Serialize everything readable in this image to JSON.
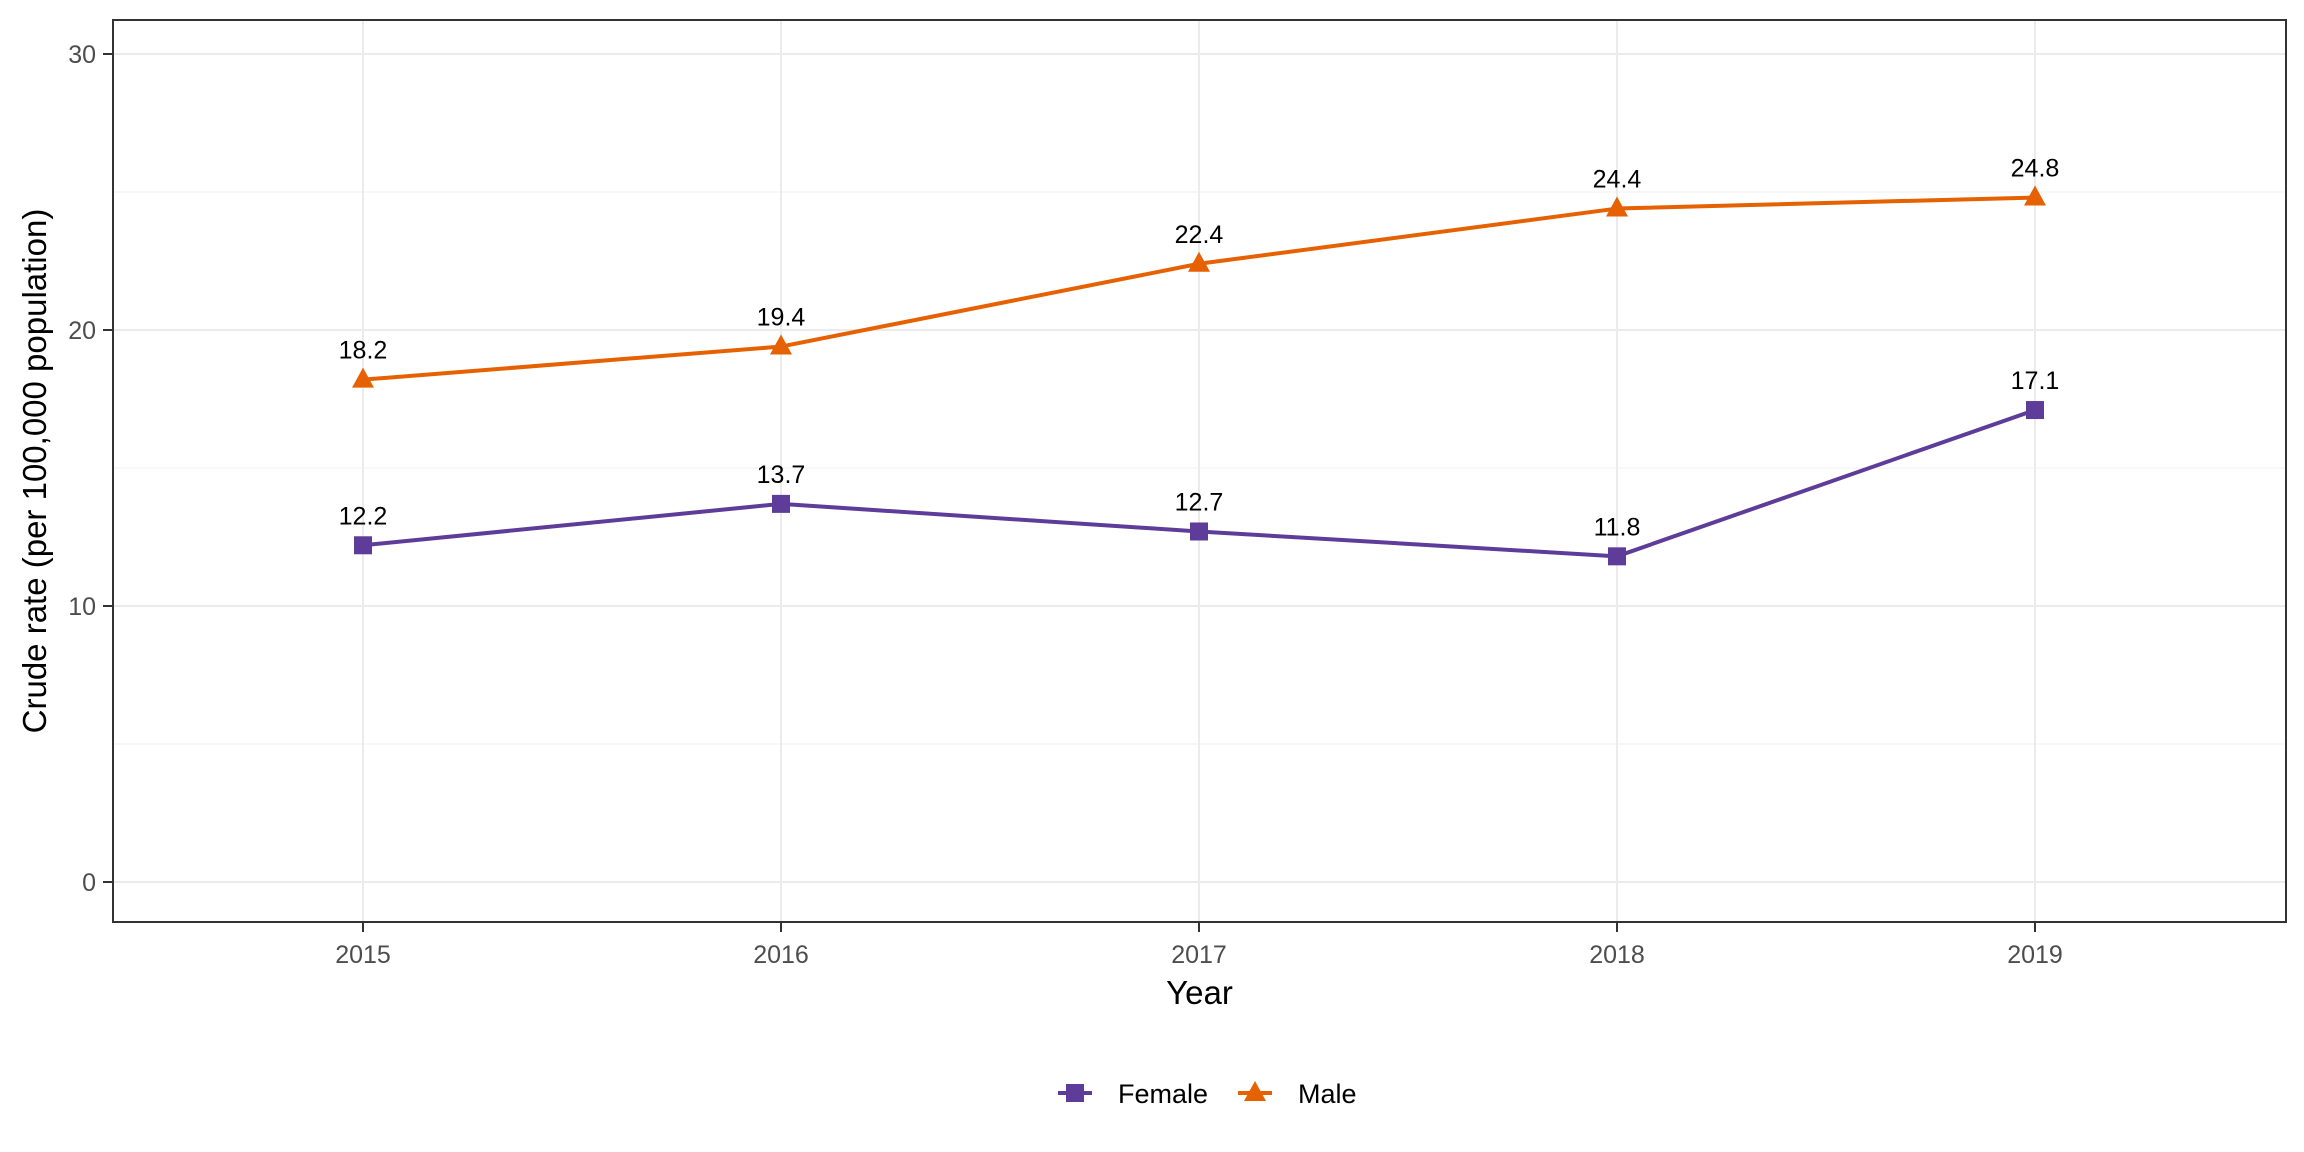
{
  "chart_data": {
    "type": "line",
    "title": "",
    "xlabel": "Year",
    "ylabel": "Crude rate (per 100,000 population)",
    "x": [
      2015,
      2016,
      2017,
      2018,
      2019
    ],
    "x_tick_labels": [
      "2015",
      "2016",
      "2017",
      "2018",
      "2019"
    ],
    "ylim": [
      0,
      30
    ],
    "y_ticks": [
      0,
      10,
      20,
      30
    ],
    "y_tick_labels": [
      "0",
      "10",
      "20",
      "30"
    ],
    "grid": true,
    "legend_position": "bottom",
    "series": [
      {
        "name": "Female",
        "color": "#5e3c99",
        "marker": "square",
        "values": [
          12.2,
          13.7,
          12.7,
          11.8,
          17.1
        ],
        "labels": [
          "12.2",
          "13.7",
          "12.7",
          "11.8",
          "17.1"
        ]
      },
      {
        "name": "Male",
        "color": "#e66101",
        "marker": "triangle",
        "values": [
          18.2,
          19.4,
          22.4,
          24.4,
          24.8
        ],
        "labels": [
          "18.2",
          "19.4",
          "22.4",
          "24.4",
          "24.8"
        ]
      }
    ]
  }
}
